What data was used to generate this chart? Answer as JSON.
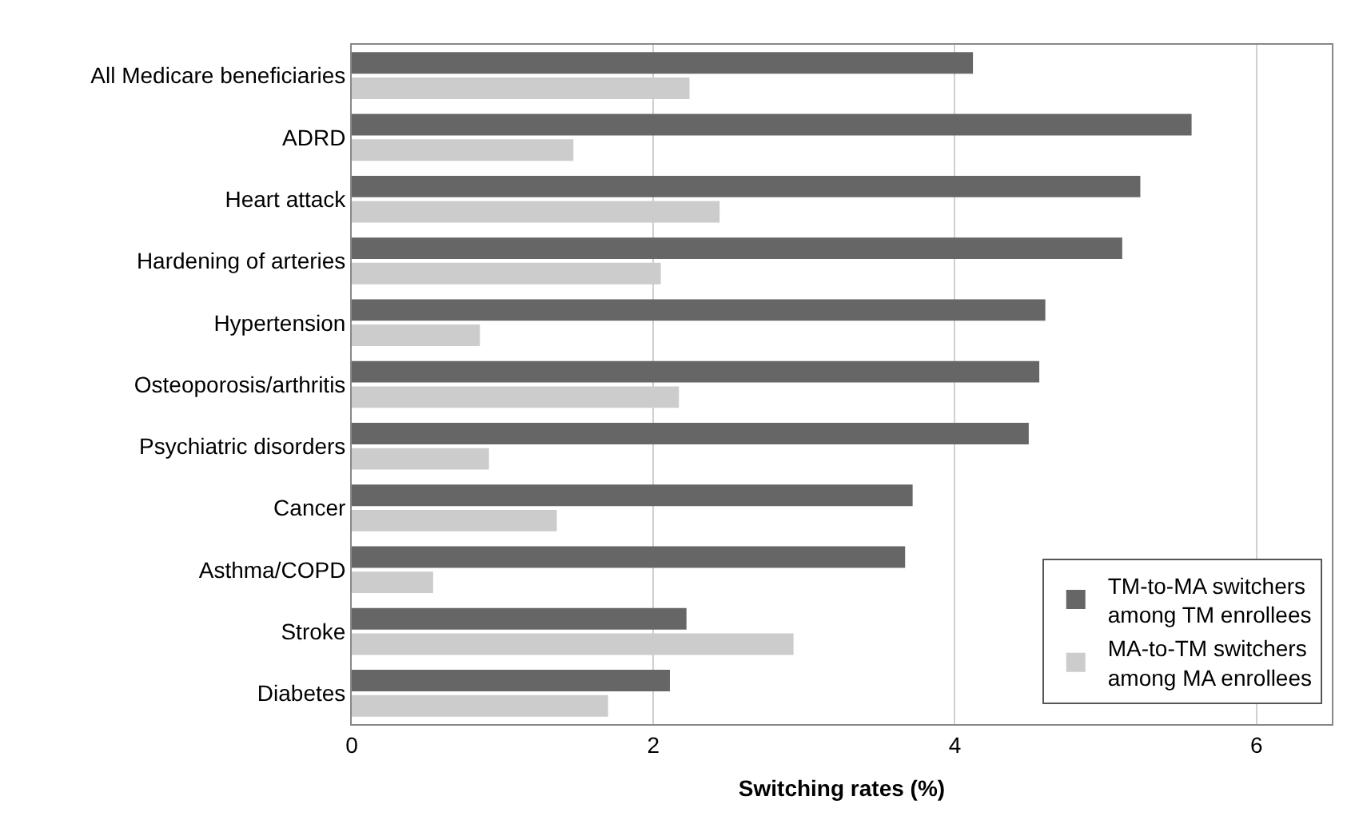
{
  "chart_data": {
    "type": "bar",
    "orientation": "horizontal",
    "xlabel": "Switching rates (%)",
    "categories": [
      "All Medicare beneficiaries",
      "ADRD",
      "Heart attack",
      "Hardening of arteries",
      "Hypertension",
      "Osteoporosis/arthritis",
      "Psychiatric disorders",
      "Cancer",
      "Asthma/COPD",
      "Stroke",
      "Diabetes"
    ],
    "series": [
      {
        "name": "TM-to-MA switchers\namong TM enrollees",
        "color": "#666666",
        "values": [
          4.12,
          5.57,
          5.23,
          5.11,
          4.6,
          4.56,
          4.49,
          3.72,
          3.67,
          2.22,
          2.11
        ]
      },
      {
        "name": "MA-to-TM switchers\namong MA enrollees",
        "color": "#cccccc",
        "values": [
          2.24,
          1.47,
          2.44,
          2.05,
          0.85,
          2.17,
          0.91,
          1.36,
          0.54,
          2.93,
          1.7
        ]
      }
    ],
    "xlim": [
      0,
      6.5
    ],
    "xticks": [
      0,
      2,
      4,
      6
    ],
    "grid": "x",
    "legend": "bottom right"
  }
}
